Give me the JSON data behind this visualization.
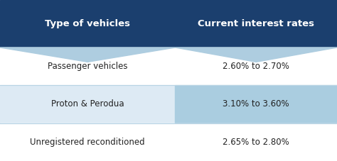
{
  "header_col1": "Type of vehicles",
  "header_col2": "Current interest rates",
  "rows": [
    {
      "col1": "Passenger vehicles",
      "col2": "2.60% to 2.70%",
      "highlight": false
    },
    {
      "col1": "Proton & Perodua",
      "col2": "3.10% to 3.60%",
      "highlight": true
    },
    {
      "col1": "Unregistered reconditioned",
      "col2": "2.65% to 2.80%",
      "highlight": false
    }
  ],
  "header_bg": "#1b3f6e",
  "header_text_color": "#ffffff",
  "header_subcolor": "#aecde0",
  "row_bg_normal": "#ffffff",
  "row_bg_highlight_left": "#ddeaf4",
  "row_bg_highlight_right": "#aacde0",
  "row_text_color": "#222222",
  "divider_color": "#b8d4e4",
  "col_split": 0.52,
  "fig_bg": "#ffffff"
}
